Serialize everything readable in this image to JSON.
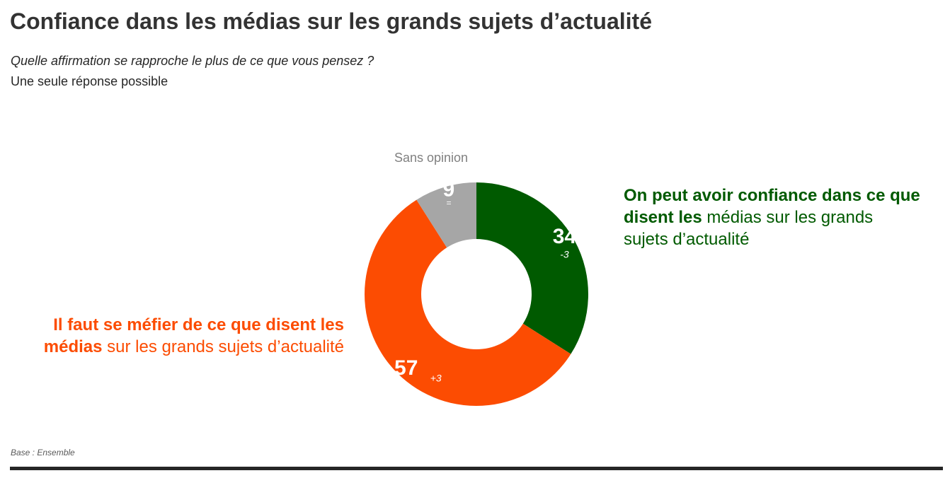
{
  "title": "Confiance dans les médias sur les grands sujets d’actualité",
  "question": "Quelle affirmation se rapproche le plus de ce que vous pensez ?",
  "instruction": "Une seule réponse possible",
  "base_note": "Base : Ensemble",
  "labels": {
    "confiance_bold": "On peut avoir confiance dans ce que disent les",
    "confiance_rest": " médias sur les grands sujets d’actualité",
    "mefier_bold": "Il faut se méfier de ce que disent les médias",
    "mefier_rest": " sur les grands sujets d’actualité"
  },
  "chart_data": {
    "type": "pie",
    "donut": true,
    "slices": [
      {
        "key": "confiance",
        "label": "On peut avoir confiance dans ce que disent les médias sur les grands sujets d’actualité",
        "value": 34,
        "change": "-3",
        "color": "#005a00"
      },
      {
        "key": "mefier",
        "label": "Il faut se méfier de ce que disent les médias sur les grands sujets d’actualité",
        "value": 57,
        "change": "+3",
        "color": "#fc4c02"
      },
      {
        "key": "sans_opinion",
        "label": "Sans opinion",
        "value": 9,
        "change": "=",
        "color": "#a6a6a6"
      }
    ],
    "start": "top",
    "direction": "clockwise"
  }
}
